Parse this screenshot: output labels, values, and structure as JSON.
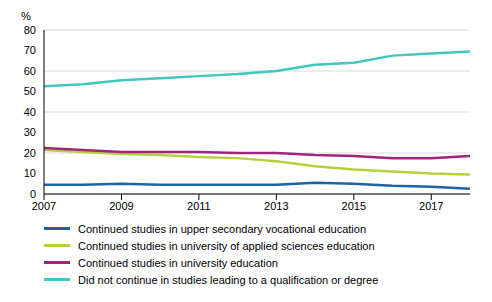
{
  "chart_data": {
    "type": "line",
    "y_label": "%",
    "x": [
      2007,
      2008,
      2009,
      2010,
      2011,
      2012,
      2013,
      2014,
      2015,
      2016,
      2017,
      2018
    ],
    "xlim": [
      2007,
      2018
    ],
    "xticks": [
      2007,
      2009,
      2011,
      2013,
      2015,
      2017
    ],
    "ylim": [
      0,
      80
    ],
    "yticks": [
      0,
      10,
      20,
      30,
      40,
      50,
      60,
      70,
      80
    ],
    "grid": true,
    "legend": "bottom",
    "series": [
      {
        "name": "Continued studies in upper secondary vocational education",
        "color": "#1b64a8",
        "values": [
          4.5,
          4.5,
          5,
          4.5,
          4.5,
          4.5,
          4.5,
          5.5,
          5,
          4,
          3.5,
          2.5
        ]
      },
      {
        "name": "Continued studies in university of applied sciences education",
        "color": "#b4d23c",
        "values": [
          21.5,
          20.5,
          19.5,
          19,
          18,
          17.5,
          16,
          13.5,
          12,
          11,
          10,
          9.5
        ]
      },
      {
        "name": "Continued studies in university education",
        "color": "#a0267d",
        "values": [
          22.5,
          21.5,
          20.5,
          20.5,
          20.5,
          20,
          20,
          19,
          18.5,
          17.5,
          17.5,
          18.5
        ]
      },
      {
        "name": "Did not continue in studies leading to a qualification or degree",
        "color": "#3ec8be",
        "values": [
          52.5,
          53.5,
          55.5,
          56.5,
          57.5,
          58.5,
          60,
          63,
          64,
          67.5,
          68.5,
          69.5
        ]
      }
    ]
  }
}
